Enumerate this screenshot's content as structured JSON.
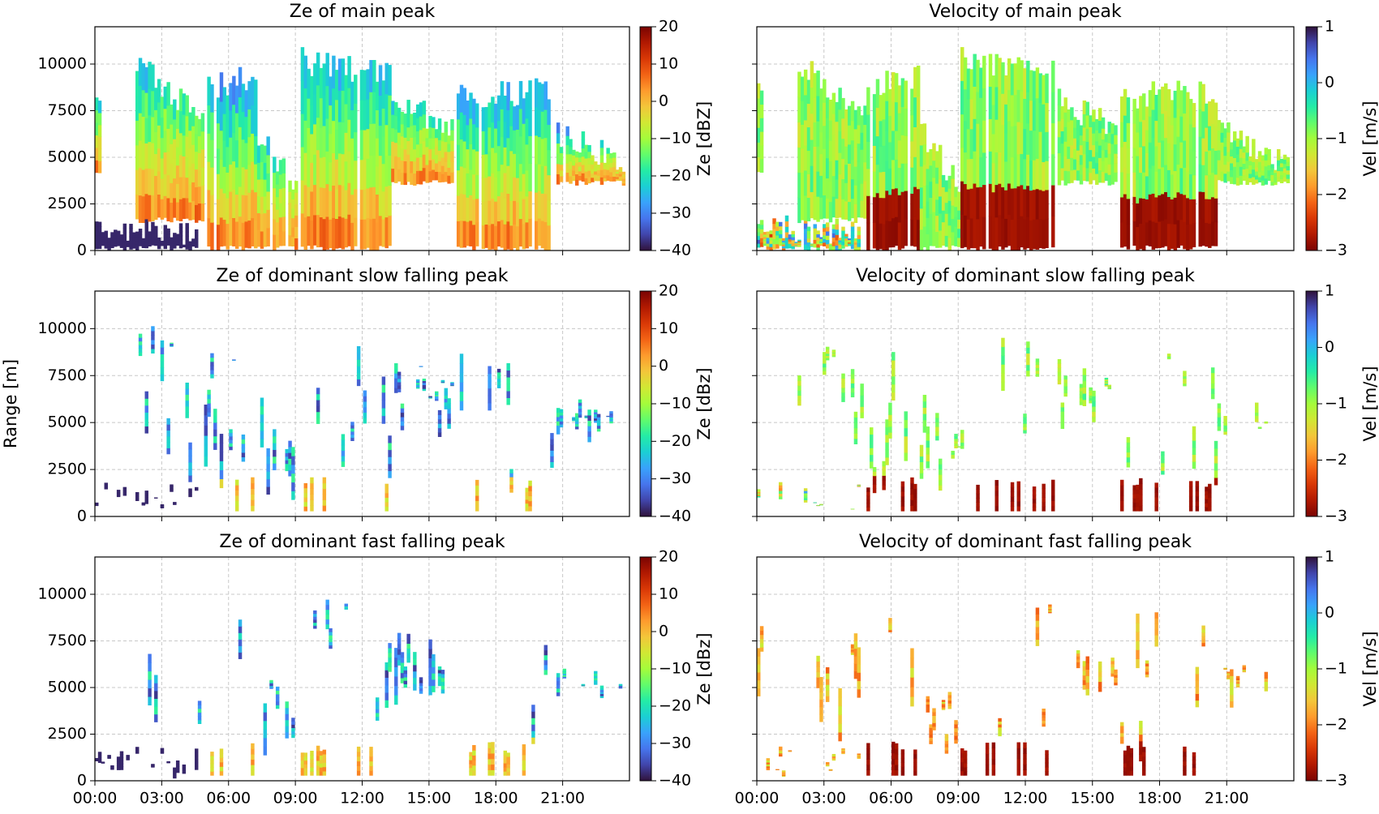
{
  "chart_data": [
    {
      "type": "heatmap",
      "title": "Ze of main peak",
      "xlim": [
        0,
        24
      ],
      "xticks": [
        0,
        3,
        6,
        9,
        12,
        15,
        18,
        21
      ],
      "ylim": [
        0,
        12000
      ],
      "yticks": [
        0,
        2500,
        5000,
        7500,
        10000
      ],
      "grid": true,
      "colorbar": {
        "label": "Ze [dBZ]",
        "lim": [
          -40,
          20
        ],
        "ticks": [
          {
            "value": -40,
            "label": "−40"
          },
          {
            "value": -30,
            "label": "−30"
          },
          {
            "value": -20,
            "label": "−20"
          },
          {
            "value": -10,
            "label": "−10"
          },
          0,
          10,
          20
        ],
        "colors": [
          "#30123b",
          "#4145ab",
          "#4675ed",
          "#39a2fc",
          "#1bcfd4",
          "#24eca6",
          "#61fc6c",
          "#a4fc3b",
          "#d1e834",
          "#f3c63a",
          "#fe9b2d",
          "#f36315",
          "#d93806",
          "#b11901",
          "#7a0403"
        ]
      }
    },
    {
      "type": "heatmap",
      "title": "Velocity of main peak",
      "xlim": [
        0,
        24
      ],
      "xticks": [
        0,
        3,
        6,
        9,
        12,
        15,
        18,
        21
      ],
      "ylim": [
        0,
        12000
      ],
      "yticks": [
        0,
        2500,
        5000,
        7500,
        10000
      ],
      "yticklabels": false,
      "grid": true,
      "colorbar": {
        "label": "Vel [m/s]",
        "lim": [
          -3,
          1
        ],
        "ticks": [
          {
            "value": -3,
            "label": "−3"
          },
          {
            "value": -2,
            "label": "−2"
          },
          {
            "value": -1,
            "label": "−1"
          },
          0,
          1
        ],
        "colors": [
          "#7a0403",
          "#b11901",
          "#d93806",
          "#f36315",
          "#fe9b2d",
          "#f3c63a",
          "#d1e834",
          "#a4fc3b",
          "#61fc6c",
          "#24eca6",
          "#1bcfd4",
          "#39a2fc",
          "#4675ed",
          "#4145ab",
          "#30123b"
        ]
      }
    },
    {
      "type": "heatmap",
      "title": "Ze of dominant slow falling peak",
      "xlim": [
        0,
        24
      ],
      "xticks": [
        0,
        3,
        6,
        9,
        12,
        15,
        18,
        21
      ],
      "ylim": [
        0,
        12000
      ],
      "yticks": [
        0,
        2500,
        5000,
        7500,
        10000
      ],
      "ylabel": "Range [m]",
      "grid": true,
      "colorbar": {
        "label": "Ze [dBz]",
        "lim": [
          -40,
          20
        ],
        "ticks": [
          {
            "value": -40,
            "label": "−40"
          },
          {
            "value": -30,
            "label": "−30"
          },
          {
            "value": -20,
            "label": "−20"
          },
          {
            "value": -10,
            "label": "−10"
          },
          0,
          10,
          20
        ],
        "colors": [
          "#30123b",
          "#4145ab",
          "#4675ed",
          "#39a2fc",
          "#1bcfd4",
          "#24eca6",
          "#61fc6c",
          "#a4fc3b",
          "#d1e834",
          "#f3c63a",
          "#fe9b2d",
          "#f36315",
          "#d93806",
          "#b11901",
          "#7a0403"
        ]
      }
    },
    {
      "type": "heatmap",
      "title": "Velocity of dominant slow falling peak",
      "xlim": [
        0,
        24
      ],
      "xticks": [
        0,
        3,
        6,
        9,
        12,
        15,
        18,
        21
      ],
      "ylim": [
        0,
        12000
      ],
      "yticks": [
        0,
        2500,
        5000,
        7500,
        10000
      ],
      "yticklabels": false,
      "grid": true,
      "colorbar": {
        "label": "Vel [m/s]",
        "lim": [
          -3,
          1
        ],
        "ticks": [
          {
            "value": -3,
            "label": "−3"
          },
          {
            "value": -2,
            "label": "−2"
          },
          {
            "value": -1,
            "label": "−1"
          },
          0,
          1
        ],
        "colors": [
          "#7a0403",
          "#b11901",
          "#d93806",
          "#f36315",
          "#fe9b2d",
          "#f3c63a",
          "#d1e834",
          "#a4fc3b",
          "#61fc6c",
          "#24eca6",
          "#1bcfd4",
          "#39a2fc",
          "#4675ed",
          "#4145ab",
          "#30123b"
        ]
      }
    },
    {
      "type": "heatmap",
      "title": "Ze of dominant fast falling peak",
      "xlim": [
        0,
        24
      ],
      "xticks": [
        {
          "value": 0,
          "label": "00:00"
        },
        {
          "value": 3,
          "label": "03:00"
        },
        {
          "value": 6,
          "label": "06:00"
        },
        {
          "value": 9,
          "label": "09:00"
        },
        {
          "value": 12,
          "label": "12:00"
        },
        {
          "value": 15,
          "label": "15:00"
        },
        {
          "value": 18,
          "label": "18:00"
        },
        {
          "value": 21,
          "label": "21:00"
        }
      ],
      "ylim": [
        0,
        12000
      ],
      "yticks": [
        0,
        2500,
        5000,
        7500,
        10000
      ],
      "grid": true,
      "colorbar": {
        "label": "Ze [dBz]",
        "lim": [
          -40,
          20
        ],
        "ticks": [
          {
            "value": -40,
            "label": "−40"
          },
          {
            "value": -30,
            "label": "−30"
          },
          {
            "value": -20,
            "label": "−20"
          },
          {
            "value": -10,
            "label": "−10"
          },
          0,
          10,
          20
        ],
        "colors": [
          "#30123b",
          "#4145ab",
          "#4675ed",
          "#39a2fc",
          "#1bcfd4",
          "#24eca6",
          "#61fc6c",
          "#a4fc3b",
          "#d1e834",
          "#f3c63a",
          "#fe9b2d",
          "#f36315",
          "#d93806",
          "#b11901",
          "#7a0403"
        ]
      }
    },
    {
      "type": "heatmap",
      "title": "Velocity of dominant fast falling peak",
      "xlim": [
        0,
        24
      ],
      "xticks": [
        {
          "value": 0,
          "label": "00:00"
        },
        {
          "value": 3,
          "label": "03:00"
        },
        {
          "value": 6,
          "label": "06:00"
        },
        {
          "value": 9,
          "label": "09:00"
        },
        {
          "value": 12,
          "label": "12:00"
        },
        {
          "value": 15,
          "label": "15:00"
        },
        {
          "value": 18,
          "label": "18:00"
        },
        {
          "value": 21,
          "label": "21:00"
        }
      ],
      "ylim": [
        0,
        12000
      ],
      "yticks": [
        0,
        2500,
        5000,
        7500,
        10000
      ],
      "yticklabels": false,
      "grid": true,
      "colorbar": {
        "label": "Vel [m/s]",
        "lim": [
          -3,
          1
        ],
        "ticks": [
          {
            "value": -3,
            "label": "−3"
          },
          {
            "value": -2,
            "label": "−2"
          },
          {
            "value": -1,
            "label": "−1"
          },
          0,
          1
        ],
        "colors": [
          "#7a0403",
          "#b11901",
          "#d93806",
          "#f36315",
          "#fe9b2d",
          "#f3c63a",
          "#d1e834",
          "#a4fc3b",
          "#61fc6c",
          "#24eca6",
          "#1bcfd4",
          "#39a2fc",
          "#4675ed",
          "#4145ab",
          "#30123b"
        ]
      }
    }
  ]
}
